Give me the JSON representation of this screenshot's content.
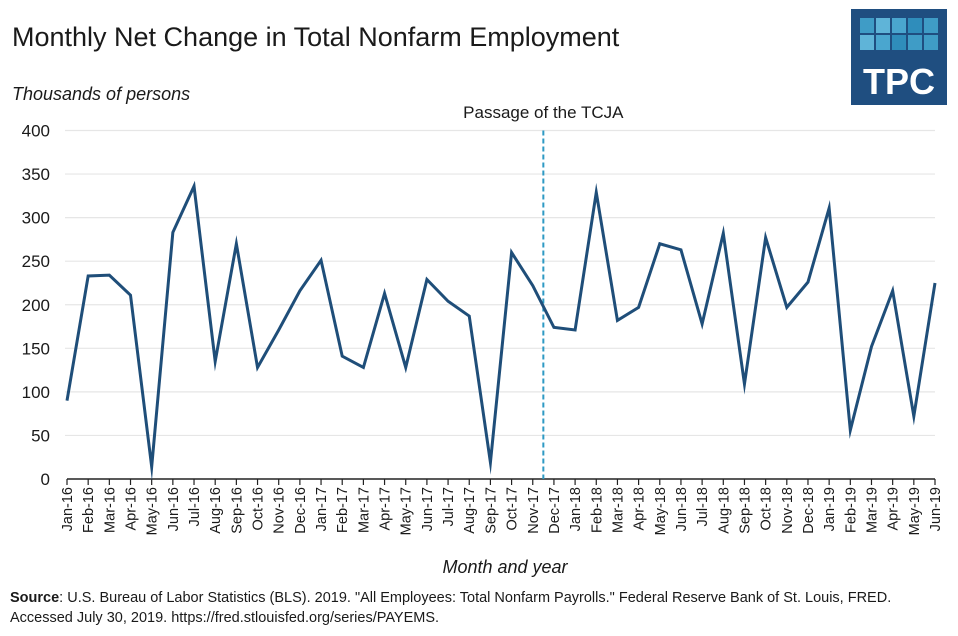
{
  "title": "Monthly Net Change in Total Nonfarm Employment",
  "logo_text": "TPC",
  "source": {
    "label": "Source",
    "text": ": U.S. Bureau of Labor Statistics (BLS). 2019. \"All Employees: Total Nonfarm Payrolls.\" Federal Reserve Bank of St. Louis, FRED. Accessed July 30, 2019. https://fred.stlouisfed.org/series/PAYEMS."
  },
  "colors": {
    "line": "#1f4e79",
    "annotation": "#2e9ac4",
    "grid": "#e6e6e6",
    "logo_bg": "#1f4e80"
  },
  "chart_data": {
    "type": "line",
    "title": "Monthly Net Change in Total Nonfarm Employment",
    "ylabel": "Thousands of persons",
    "xlabel": "Month and year",
    "ylim": [
      0,
      400
    ],
    "yticks": [
      0,
      50,
      100,
      150,
      200,
      250,
      300,
      350,
      400
    ],
    "grid": true,
    "categories": [
      "Jan-16",
      "Feb-16",
      "Mar-16",
      "Apr-16",
      "May-16",
      "Jun-16",
      "Jul-16",
      "Aug-16",
      "Sep-16",
      "Oct-16",
      "Nov-16",
      "Dec-16",
      "Jan-17",
      "Feb-17",
      "Mar-17",
      "Apr-17",
      "May-17",
      "Jun-17",
      "Jul-17",
      "Aug-17",
      "Sep-17",
      "Oct-17",
      "Nov-17",
      "Dec-17",
      "Jan-18",
      "Feb-18",
      "Mar-18",
      "Apr-18",
      "May-18",
      "Jun-18",
      "Jul-18",
      "Aug-18",
      "Sep-18",
      "Oct-18",
      "Nov-18",
      "Dec-18",
      "Jan-19",
      "Feb-19",
      "Mar-19",
      "Apr-19",
      "May-19",
      "Jun-19"
    ],
    "values": [
      90,
      233,
      234,
      211,
      14,
      283,
      336,
      135,
      270,
      128,
      171,
      216,
      251,
      141,
      128,
      213,
      128,
      229,
      204,
      187,
      19,
      260,
      222,
      174,
      171,
      329,
      182,
      197,
      270,
      263,
      178,
      282,
      109,
      277,
      197,
      226,
      311,
      56,
      152,
      216,
      72,
      225
    ],
    "annotation": {
      "label": "Passage of the TCJA",
      "between": [
        "Nov-17",
        "Dec-17"
      ],
      "style": "dashed vertical line"
    }
  }
}
